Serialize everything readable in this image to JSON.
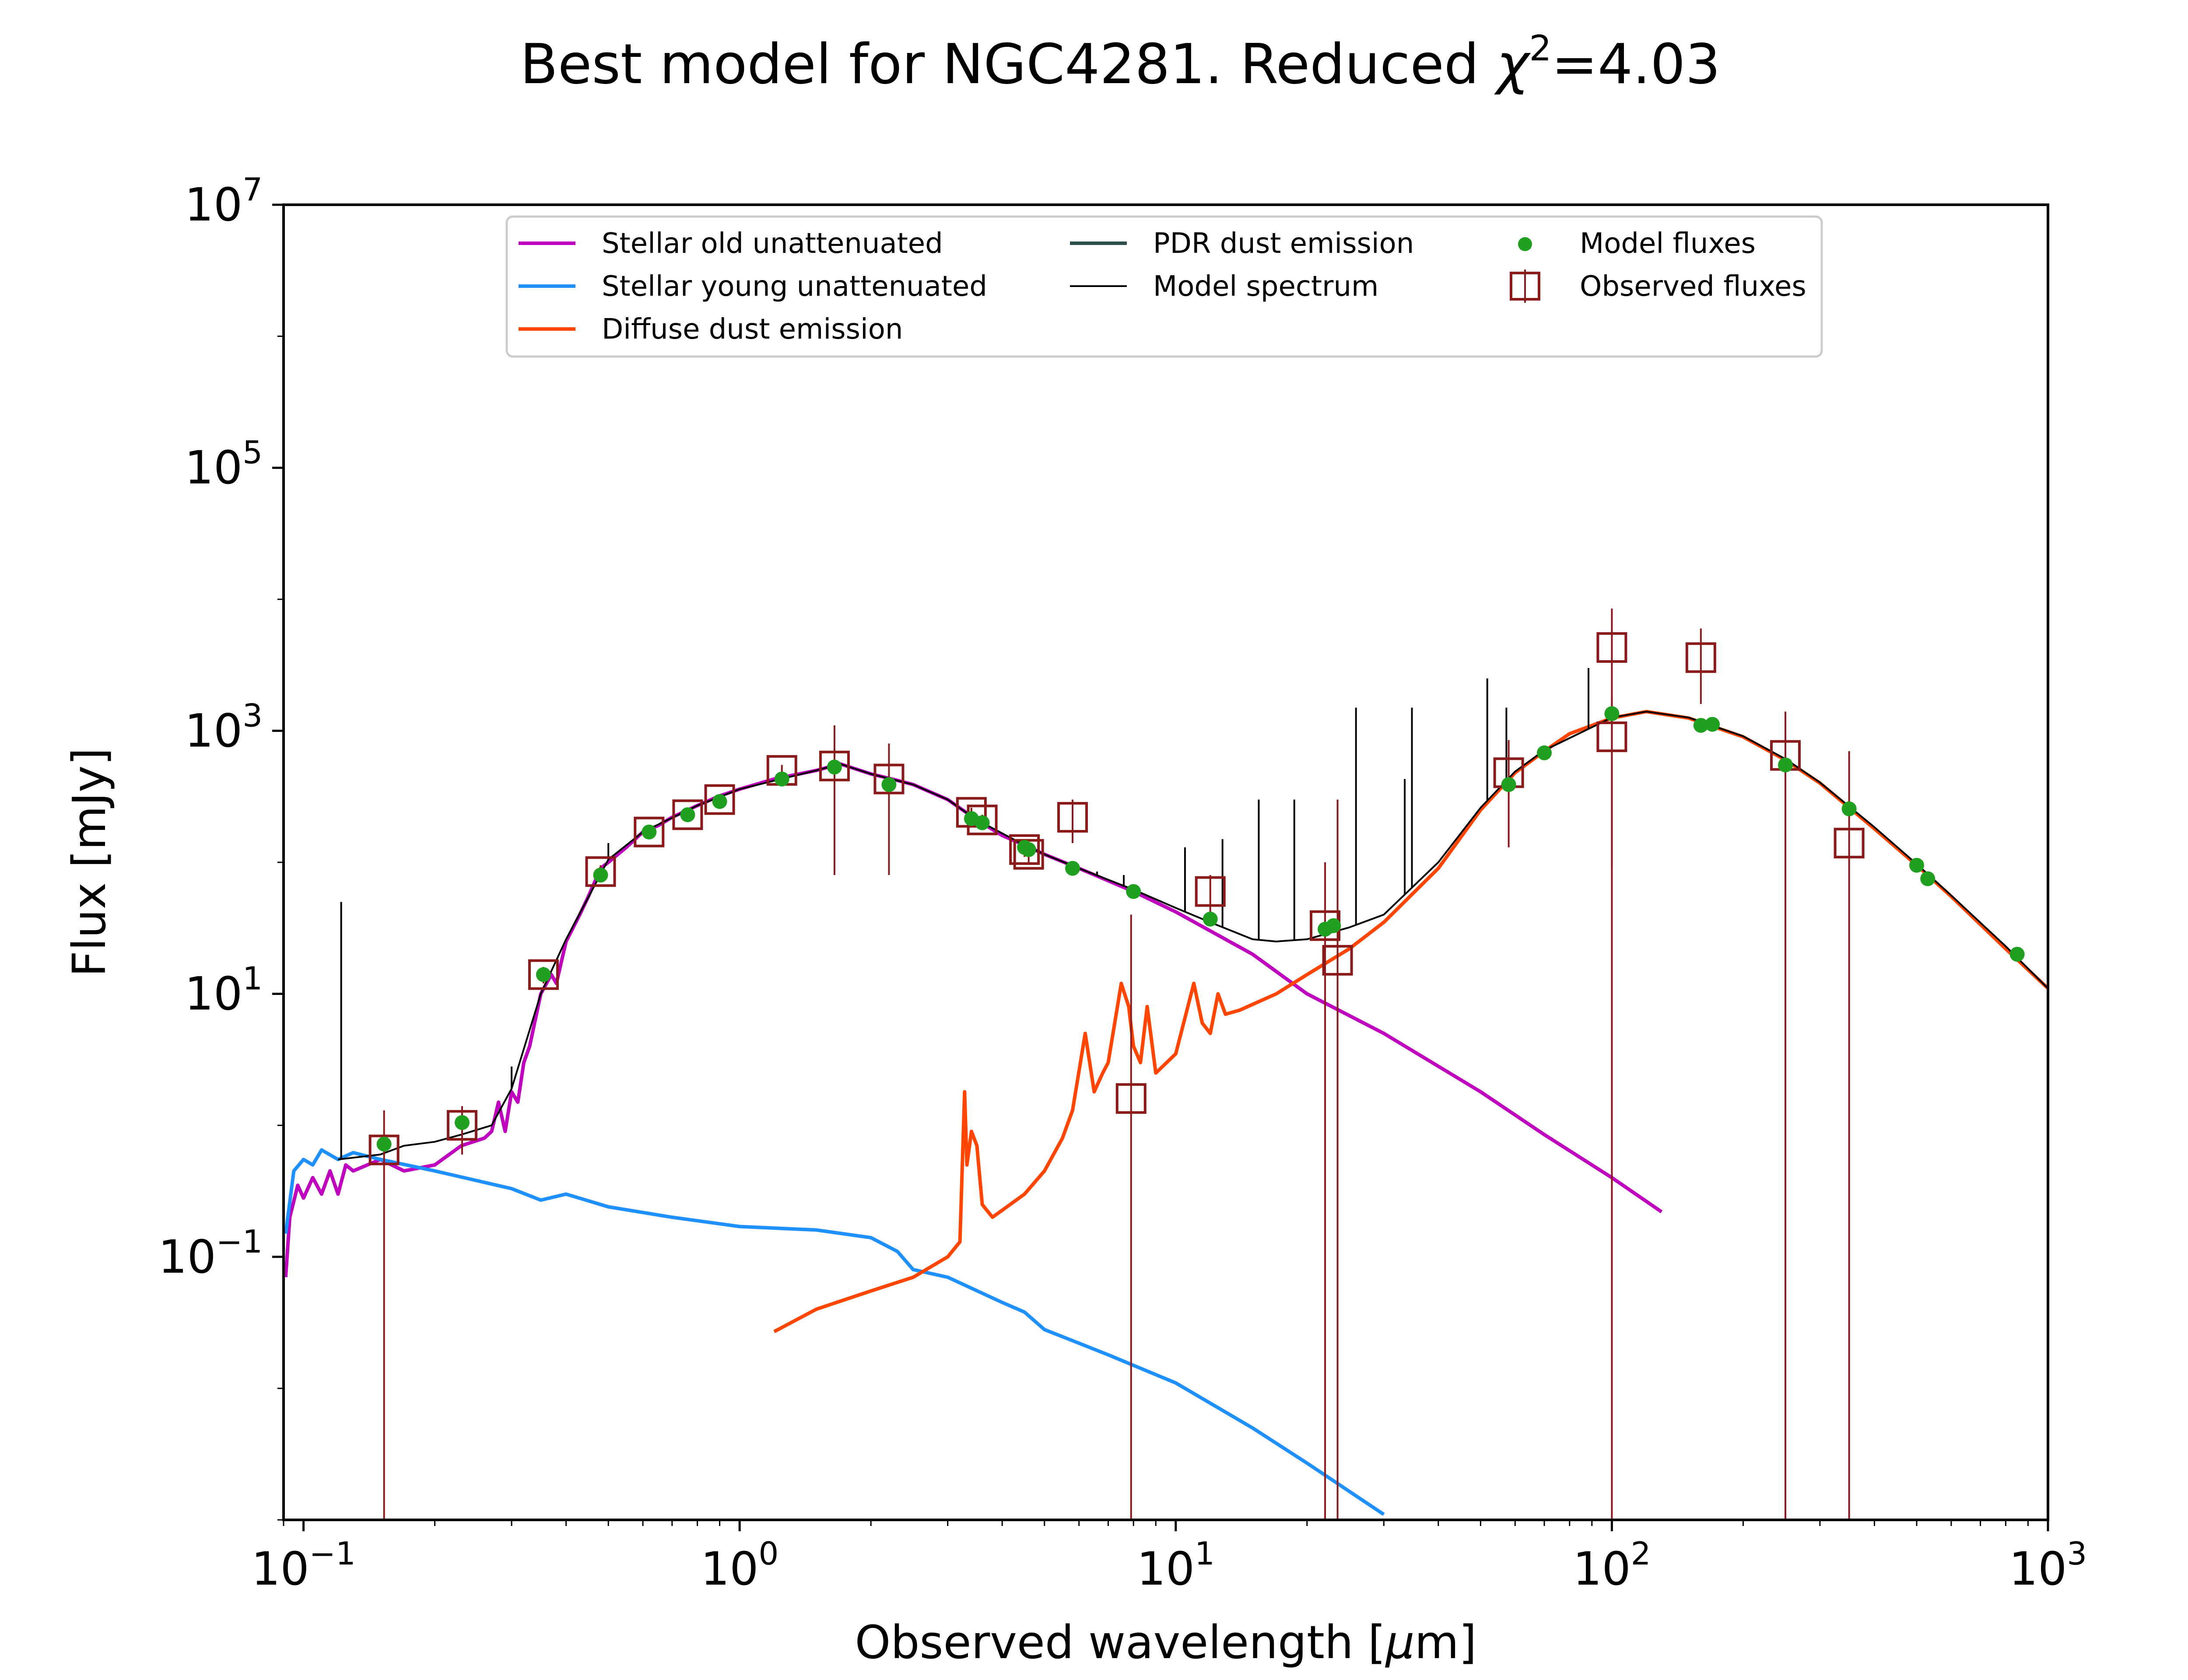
{
  "chart_data": {
    "type": "line",
    "title": "Best model for NGC4281. Reduced χ²=4.03",
    "title_parts": {
      "main": "Best model for NGC4281. Reduced ",
      "chi": "χ",
      "chi_sup": "2",
      "rest": "=4.03"
    },
    "xlabel": "Observed wavelength [μm]",
    "xlabel_parts": {
      "a": "Observed wavelength [",
      "mu": "μ",
      "b": "m]"
    },
    "ylabel": "Flux [mJy]",
    "xscale": "log",
    "yscale": "log",
    "xlim": [
      0.09,
      1000
    ],
    "ylim": [
      0.001,
      10000000
    ],
    "xticks": [
      {
        "value": 0.1,
        "base": "10",
        "exp": "−1"
      },
      {
        "value": 1,
        "base": "10",
        "exp": "0"
      },
      {
        "value": 10,
        "base": "10",
        "exp": "1"
      },
      {
        "value": 100,
        "base": "10",
        "exp": "2"
      },
      {
        "value": 1000,
        "base": "10",
        "exp": "3"
      }
    ],
    "yticks": [
      {
        "value": 0.1,
        "base": "10",
        "exp": "−1"
      },
      {
        "value": 10,
        "base": "10",
        "exp": "1"
      },
      {
        "value": 1000,
        "base": "10",
        "exp": "3"
      },
      {
        "value": 100000,
        "base": "10",
        "exp": "5"
      },
      {
        "value": 10000000,
        "base": "10",
        "exp": "7"
      }
    ],
    "legend_position": "upper center",
    "series": [
      {
        "name": "Stellar old unattenuated",
        "color": "#bf00bf",
        "kind": "line",
        "points": [
          [
            0.091,
            0.07
          ],
          [
            0.093,
            0.2
          ],
          [
            0.097,
            0.35
          ],
          [
            0.1,
            0.28
          ],
          [
            0.105,
            0.4
          ],
          [
            0.11,
            0.3
          ],
          [
            0.115,
            0.45
          ],
          [
            0.12,
            0.3
          ],
          [
            0.125,
            0.5
          ],
          [
            0.13,
            0.45
          ],
          [
            0.15,
            0.55
          ],
          [
            0.17,
            0.45
          ],
          [
            0.2,
            0.5
          ],
          [
            0.23,
            0.7
          ],
          [
            0.26,
            0.8
          ],
          [
            0.27,
            0.9
          ],
          [
            0.28,
            1.5
          ],
          [
            0.29,
            0.9
          ],
          [
            0.3,
            1.8
          ],
          [
            0.31,
            1.5
          ],
          [
            0.32,
            3
          ],
          [
            0.33,
            4
          ],
          [
            0.35,
            10
          ],
          [
            0.37,
            14
          ],
          [
            0.38,
            12
          ],
          [
            0.4,
            25
          ],
          [
            0.43,
            40
          ],
          [
            0.45,
            55
          ],
          [
            0.48,
            90
          ],
          [
            0.5,
            100
          ],
          [
            0.55,
            130
          ],
          [
            0.6,
            170
          ],
          [
            0.65,
            190
          ],
          [
            0.7,
            220
          ],
          [
            0.8,
            270
          ],
          [
            0.9,
            320
          ],
          [
            1.0,
            360
          ],
          [
            1.2,
            430
          ],
          [
            1.5,
            500
          ],
          [
            1.7,
            560
          ],
          [
            2.0,
            470
          ],
          [
            2.3,
            420
          ],
          [
            2.5,
            390
          ],
          [
            3.0,
            300
          ],
          [
            3.5,
            210
          ],
          [
            4.0,
            160
          ],
          [
            4.5,
            135
          ],
          [
            5,
            115
          ],
          [
            6,
            90
          ],
          [
            8,
            60
          ],
          [
            10,
            42
          ],
          [
            15,
            20
          ],
          [
            20,
            10
          ],
          [
            30,
            5
          ],
          [
            50,
            1.8
          ],
          [
            70,
            0.85
          ],
          [
            100,
            0.4
          ],
          [
            130,
            0.22
          ]
        ]
      },
      {
        "name": "Stellar young unattenuated",
        "color": "#1e90ff",
        "kind": "line",
        "points": [
          [
            0.091,
            0.15
          ],
          [
            0.095,
            0.45
          ],
          [
            0.1,
            0.55
          ],
          [
            0.105,
            0.5
          ],
          [
            0.11,
            0.65
          ],
          [
            0.12,
            0.55
          ],
          [
            0.13,
            0.62
          ],
          [
            0.15,
            0.55
          ],
          [
            0.2,
            0.45
          ],
          [
            0.3,
            0.33
          ],
          [
            0.35,
            0.27
          ],
          [
            0.4,
            0.3
          ],
          [
            0.5,
            0.24
          ],
          [
            0.7,
            0.2
          ],
          [
            1.0,
            0.17
          ],
          [
            1.5,
            0.16
          ],
          [
            2.0,
            0.14
          ],
          [
            2.3,
            0.11
          ],
          [
            2.5,
            0.08
          ],
          [
            3.0,
            0.07
          ],
          [
            4.0,
            0.045
          ],
          [
            4.5,
            0.038
          ],
          [
            5.0,
            0.028
          ],
          [
            7,
            0.018
          ],
          [
            10,
            0.011
          ],
          [
            15,
            0.005
          ],
          [
            20,
            0.0027
          ],
          [
            30,
            0.0011
          ]
        ]
      },
      {
        "name": "Diffuse dust emission",
        "color": "#ff4500",
        "kind": "line",
        "points": [
          [
            1.2,
            0.027
          ],
          [
            1.5,
            0.04
          ],
          [
            2.0,
            0.055
          ],
          [
            2.5,
            0.07
          ],
          [
            3.0,
            0.1
          ],
          [
            3.2,
            0.13
          ],
          [
            3.28,
            1.8
          ],
          [
            3.32,
            0.5
          ],
          [
            3.4,
            0.9
          ],
          [
            3.5,
            0.7
          ],
          [
            3.6,
            0.25
          ],
          [
            3.8,
            0.2
          ],
          [
            4.5,
            0.3
          ],
          [
            5.0,
            0.45
          ],
          [
            5.5,
            0.8
          ],
          [
            5.8,
            1.3
          ],
          [
            6.2,
            5
          ],
          [
            6.5,
            1.8
          ],
          [
            6.8,
            2.5
          ],
          [
            7.0,
            3
          ],
          [
            7.5,
            12
          ],
          [
            7.8,
            8
          ],
          [
            8.0,
            4
          ],
          [
            8.3,
            3
          ],
          [
            8.6,
            8
          ],
          [
            9.0,
            2.5
          ],
          [
            10.0,
            3.5
          ],
          [
            11.0,
            12
          ],
          [
            11.5,
            6
          ],
          [
            12.0,
            5
          ],
          [
            12.5,
            10
          ],
          [
            13,
            7
          ],
          [
            14,
            7.5
          ],
          [
            17,
            10
          ],
          [
            20,
            14
          ],
          [
            25,
            22
          ],
          [
            30,
            35
          ],
          [
            40,
            90
          ],
          [
            50,
            250
          ],
          [
            60,
            480
          ],
          [
            70,
            700
          ],
          [
            80,
            950
          ],
          [
            100,
            1250
          ],
          [
            120,
            1400
          ],
          [
            150,
            1250
          ],
          [
            200,
            900
          ],
          [
            250,
            600
          ],
          [
            300,
            400
          ],
          [
            400,
            180
          ],
          [
            500,
            95
          ],
          [
            600,
            55
          ],
          [
            800,
            22
          ],
          [
            1000,
            11
          ]
        ]
      },
      {
        "name": "PDR dust emission",
        "color": "#2f4f4f",
        "kind": "line",
        "points": []
      },
      {
        "name": "Model spectrum",
        "color": "#000000",
        "kind": "thin-line",
        "points": [
          [
            0.12,
            0.55
          ],
          [
            0.15,
            0.6
          ],
          [
            0.17,
            0.7
          ],
          [
            0.2,
            0.75
          ],
          [
            0.23,
            0.85
          ],
          [
            0.27,
            1.0
          ],
          [
            0.3,
            1.9
          ],
          [
            0.35,
            10
          ],
          [
            0.4,
            26
          ],
          [
            0.5,
            105
          ],
          [
            0.6,
            170
          ],
          [
            0.8,
            270
          ],
          [
            1.0,
            360
          ],
          [
            1.5,
            500
          ],
          [
            1.7,
            560
          ],
          [
            2.0,
            470
          ],
          [
            2.5,
            390
          ],
          [
            3.0,
            300
          ],
          [
            3.5,
            210
          ],
          [
            4.5,
            135
          ],
          [
            5,
            115
          ],
          [
            6,
            90
          ],
          [
            8,
            62
          ],
          [
            10,
            45
          ],
          [
            12,
            35
          ],
          [
            15,
            26
          ],
          [
            17,
            25
          ],
          [
            20,
            26
          ],
          [
            25,
            32
          ],
          [
            30,
            40
          ],
          [
            40,
            100
          ],
          [
            50,
            260
          ],
          [
            60,
            490
          ],
          [
            70,
            710
          ],
          [
            100,
            1260
          ],
          [
            120,
            1400
          ],
          [
            150,
            1260
          ],
          [
            200,
            910
          ],
          [
            250,
            610
          ],
          [
            300,
            405
          ],
          [
            400,
            185
          ],
          [
            500,
            97
          ],
          [
            600,
            56
          ],
          [
            800,
            23
          ],
          [
            1000,
            11
          ]
        ],
        "spikes": [
          [
            0.122,
            50
          ],
          [
            0.3,
            2.8
          ],
          [
            0.5,
            140
          ],
          [
            6.6,
            85
          ],
          [
            7.6,
            80
          ],
          [
            10.5,
            130
          ],
          [
            12.8,
            150
          ],
          [
            15.5,
            300
          ],
          [
            18.7,
            300
          ],
          [
            25.9,
            1500
          ],
          [
            33.5,
            430
          ],
          [
            34.8,
            1500
          ],
          [
            51.8,
            2500
          ],
          [
            57.3,
            1500
          ],
          [
            88.4,
            3000
          ]
        ]
      }
    ],
    "model_fluxes": {
      "name": "Model fluxes",
      "color": "#20a020",
      "points": [
        [
          0.153,
          0.72
        ],
        [
          0.231,
          1.05
        ],
        [
          0.355,
          14
        ],
        [
          0.48,
          80
        ],
        [
          0.62,
          170
        ],
        [
          0.76,
          230
        ],
        [
          0.9,
          290
        ],
        [
          1.25,
          430
        ],
        [
          1.65,
          530
        ],
        [
          2.2,
          390
        ],
        [
          3.4,
          215
        ],
        [
          3.6,
          200
        ],
        [
          4.5,
          130
        ],
        [
          4.6,
          125
        ],
        [
          5.8,
          90
        ],
        [
          8,
          60
        ],
        [
          12,
          37
        ],
        [
          22,
          31
        ],
        [
          23,
          33
        ],
        [
          58,
          390
        ],
        [
          70,
          680
        ],
        [
          100,
          1350
        ],
        [
          160,
          1100
        ],
        [
          170,
          1120
        ],
        [
          250,
          550
        ],
        [
          350,
          255
        ],
        [
          500,
          95
        ],
        [
          530,
          75
        ],
        [
          850,
          20
        ]
      ]
    },
    "observed_fluxes": {
      "name": "Observed fluxes",
      "color": "#8b1a1a",
      "points": [
        {
          "x": 0.153,
          "y": 0.65,
          "lo": 0.001,
          "hi": 1.3
        },
        {
          "x": 0.231,
          "y": 1.0,
          "lo": 0.6,
          "hi": 1.4
        },
        {
          "x": 0.355,
          "y": 14,
          "lo": 12,
          "hi": 16
        },
        {
          "x": 0.48,
          "y": 85,
          "lo": 75,
          "hi": 95
        },
        {
          "x": 0.62,
          "y": 170,
          "lo": 150,
          "hi": 190
        },
        {
          "x": 0.76,
          "y": 230,
          "lo": 210,
          "hi": 250
        },
        {
          "x": 0.9,
          "y": 300,
          "lo": 270,
          "hi": 330
        },
        {
          "x": 1.25,
          "y": 500,
          "lo": 450,
          "hi": 550
        },
        {
          "x": 1.65,
          "y": 540,
          "lo": 80,
          "hi": 1100
        },
        {
          "x": 2.2,
          "y": 430,
          "lo": 80,
          "hi": 800
        },
        {
          "x": 3.4,
          "y": 240,
          "lo": 220,
          "hi": 260
        },
        {
          "x": 3.6,
          "y": 210,
          "lo": 190,
          "hi": 230
        },
        {
          "x": 4.5,
          "y": 125,
          "lo": 110,
          "hi": 140
        },
        {
          "x": 4.6,
          "y": 115,
          "lo": 100,
          "hi": 130
        },
        {
          "x": 5.8,
          "y": 220,
          "lo": 140,
          "hi": 300
        },
        {
          "x": 7.9,
          "y": 1.6,
          "lo": 0.001,
          "hi": 40
        },
        {
          "x": 12,
          "y": 60,
          "lo": 40,
          "hi": 80
        },
        {
          "x": 22,
          "y": 33,
          "lo": 0.001,
          "hi": 100
        },
        {
          "x": 23.5,
          "y": 18,
          "lo": 0.001,
          "hi": 300
        },
        {
          "x": 58,
          "y": 480,
          "lo": 130,
          "hi": 850
        },
        {
          "x": 100,
          "y": 4300,
          "lo": 90,
          "hi": 8500
        },
        {
          "x": 100,
          "y": 900,
          "lo": 0.001,
          "hi": 1800
        },
        {
          "x": 160,
          "y": 3600,
          "lo": 1600,
          "hi": 6000
        },
        {
          "x": 250,
          "y": 650,
          "lo": 0.001,
          "hi": 1400
        },
        {
          "x": 350,
          "y": 140,
          "lo": 0.001,
          "hi": 700
        }
      ]
    },
    "legend": [
      {
        "label": "Stellar old unattenuated",
        "color": "#bf00bf",
        "marker": "line"
      },
      {
        "label": "Stellar young unattenuated",
        "color": "#1e90ff",
        "marker": "line"
      },
      {
        "label": "Diffuse dust emission",
        "color": "#ff4500",
        "marker": "line"
      },
      {
        "label": "PDR dust emission",
        "color": "#2f4f4f",
        "marker": "line"
      },
      {
        "label": "Model spectrum",
        "color": "#000000",
        "marker": "thin-line"
      },
      {
        "label": "Model fluxes",
        "color": "#20a020",
        "marker": "dot"
      },
      {
        "label": "Observed fluxes",
        "color": "#8b1a1a",
        "marker": "square-errorbar"
      }
    ]
  }
}
